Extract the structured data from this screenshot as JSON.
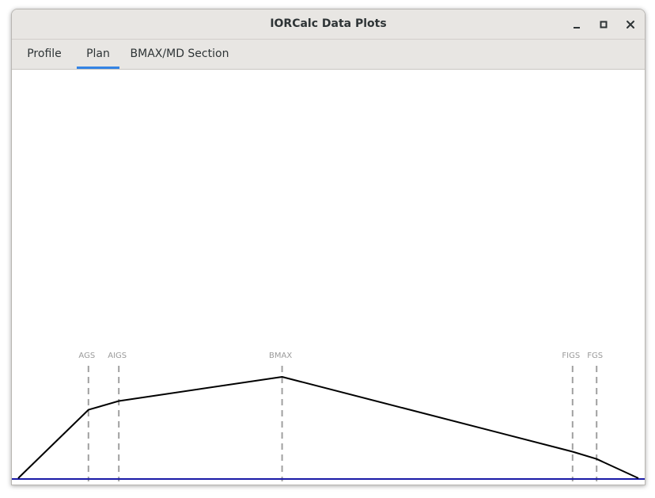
{
  "window": {
    "title": "IORCalc Data Plots",
    "controls": [
      {
        "name": "minimize",
        "icon": "minimize-icon"
      },
      {
        "name": "maximize",
        "icon": "maximize-icon"
      },
      {
        "name": "close",
        "icon": "close-icon"
      }
    ]
  },
  "tabs": [
    {
      "label": "Profile",
      "active": false
    },
    {
      "label": "Plan",
      "active": true
    },
    {
      "label": "BMAX/MD Section",
      "active": false
    }
  ],
  "colors": {
    "accent": "#3584e4",
    "baseline": "#1a1aa6",
    "outline": "#000000",
    "station_marker": "#a0a0a0"
  },
  "chart_data": {
    "type": "line",
    "title": "",
    "xlabel": "",
    "ylabel": "",
    "grid": false,
    "legend": "none",
    "stations": [
      {
        "label": "AGS",
        "x": 0.121
      },
      {
        "label": "AIGS",
        "x": 0.169
      },
      {
        "label": "BMAX",
        "x": 0.427
      },
      {
        "label": "FIGS",
        "x": 0.886
      },
      {
        "label": "FGS",
        "x": 0.924
      }
    ],
    "series": [
      {
        "x": [
          0.01,
          0.121,
          0.169,
          0.427,
          0.886,
          0.924,
          0.99
        ],
        "y": [
          0.0,
          0.675,
          0.762,
          1.0,
          0.262,
          0.19,
          0.0
        ]
      }
    ],
    "baseline_y": 0,
    "xlim": [
      0,
      1
    ],
    "ylim": [
      0,
      1
    ]
  }
}
